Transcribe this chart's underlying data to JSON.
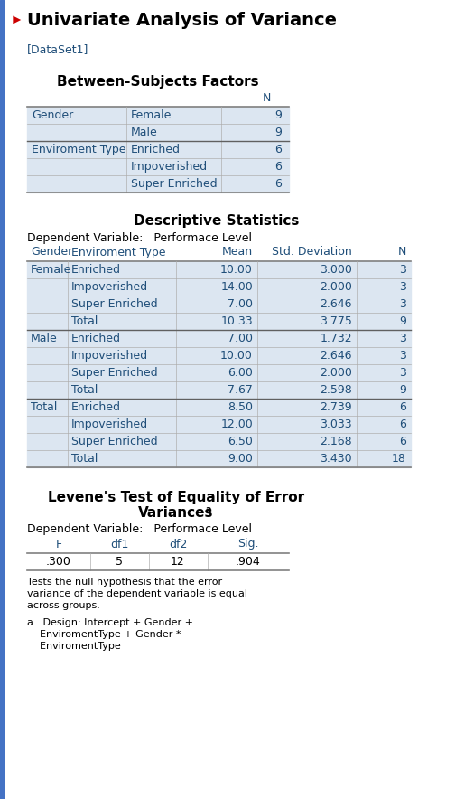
{
  "title": "Univariate Analysis of Variance",
  "dataset_label": "[DataSet1]",
  "bg_color": "#ffffff",
  "left_border_color": "#4472c4",
  "title_color": "#1a1a1a",
  "title_arrow_color": "#cc0000",
  "table_text_color": "#1f4e79",
  "cell_bg_gray": "#dce6f1",
  "section1_title": "Between-Subjects Factors",
  "section1_rows": [
    [
      "Gender",
      "Female",
      "9"
    ],
    [
      "",
      "Male",
      "9"
    ],
    [
      "Enviroment Type",
      "Enriched",
      "6"
    ],
    [
      "",
      "Impoverished",
      "6"
    ],
    [
      "",
      "Super Enriched",
      "6"
    ]
  ],
  "section2_title": "Descriptive Statistics",
  "section2_dep_var": "Dependent Variable:   Performace Level",
  "section2_headers": [
    "Gender",
    "Enviroment Type",
    "Mean",
    "Std. Deviation",
    "N"
  ],
  "section2_rows": [
    [
      "Female",
      "Enriched",
      "10.00",
      "3.000",
      "3"
    ],
    [
      "",
      "Impoverished",
      "14.00",
      "2.000",
      "3"
    ],
    [
      "",
      "Super Enriched",
      "7.00",
      "2.646",
      "3"
    ],
    [
      "",
      "Total",
      "10.33",
      "3.775",
      "9"
    ],
    [
      "Male",
      "Enriched",
      "7.00",
      "1.732",
      "3"
    ],
    [
      "",
      "Impoverished",
      "10.00",
      "2.646",
      "3"
    ],
    [
      "",
      "Super Enriched",
      "6.00",
      "2.000",
      "3"
    ],
    [
      "",
      "Total",
      "7.67",
      "2.598",
      "9"
    ],
    [
      "Total",
      "Enriched",
      "8.50",
      "2.739",
      "6"
    ],
    [
      "",
      "Impoverished",
      "12.00",
      "3.033",
      "6"
    ],
    [
      "",
      "Super Enriched",
      "6.50",
      "2.168",
      "6"
    ],
    [
      "",
      "Total",
      "9.00",
      "3.430",
      "18"
    ]
  ],
  "section3_title_line1": "Levene's Test of Equality of Error",
  "section3_title_line2": "Variances",
  "section3_dep_var": "Dependent Variable:   Performace Level",
  "section3_headers": [
    "F",
    "df1",
    "df2",
    "Sig."
  ],
  "section3_row": [
    ".300",
    "5",
    "12",
    ".904"
  ],
  "section3_notes": [
    "Tests the null hypothesis that the error",
    "variance of the dependent variable is equal",
    "across groups."
  ],
  "section3_footnote": [
    "a.  Design: Intercept + Gender +",
    "    EnviromentType + Gender *",
    "    EnviromentType"
  ]
}
